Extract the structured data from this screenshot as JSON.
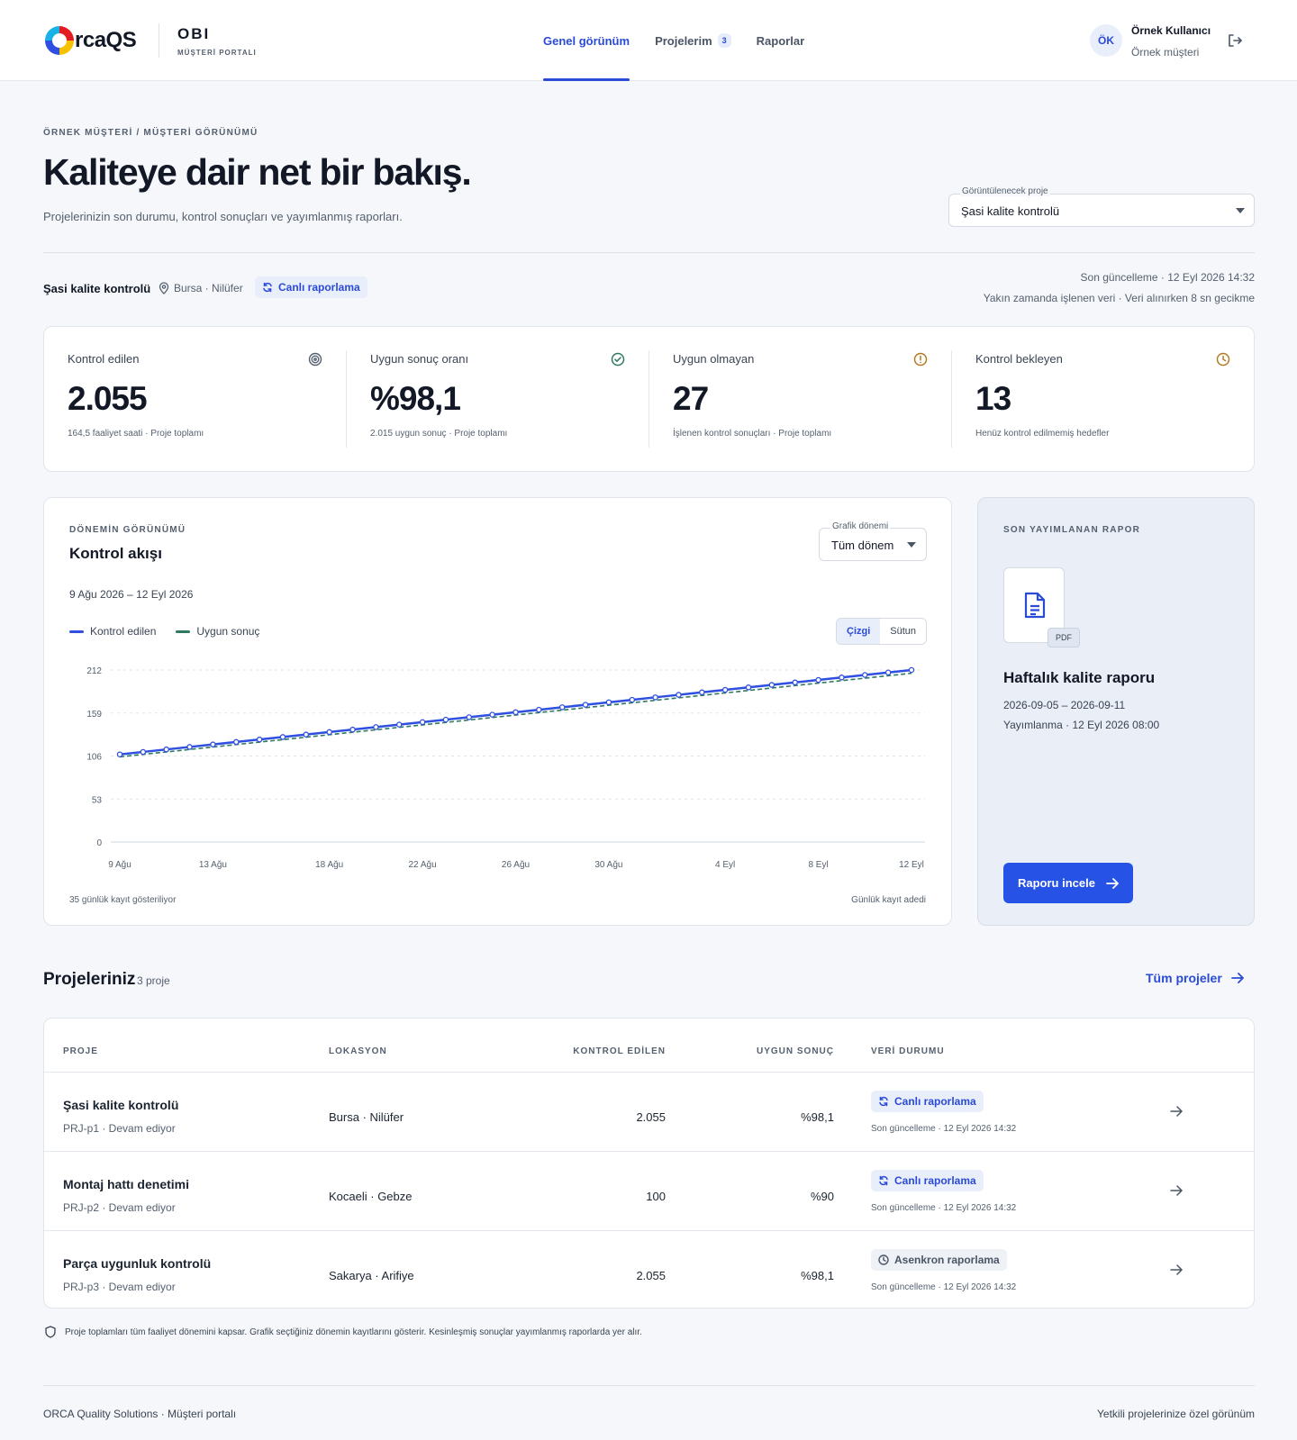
{
  "header": {
    "logo_text": "rcaQS",
    "brand_name": "OBI",
    "brand_sub": "MÜŞTERİ PORTALI",
    "nav": [
      {
        "label": "Genel görünüm",
        "active": true
      },
      {
        "label": "Projelerim",
        "badge": "3"
      },
      {
        "label": "Raporlar"
      }
    ],
    "user": {
      "initials": "ÖK",
      "name": "Örnek Kullanıcı",
      "role": "Örnek müşteri"
    }
  },
  "page": {
    "breadcrumb": "ÖRNEK MÜŞTERİ / MÜŞTERİ GÖRÜNÜMÜ",
    "title": "Kaliteye dair net bir bakış.",
    "subtitle": "Projelerinizin son durumu, kontrol sonuçları ve yayımlanmış raporları.",
    "project_select": {
      "label": "Görüntülenecek proje",
      "value": "Şasi kalite kontrolü"
    }
  },
  "project_bar": {
    "name": "Şasi kalite kontrolü",
    "location": "Bursa · Nilüfer",
    "status_chip": "Canlı raporlama",
    "last_update": "Son güncelleme · 12 Eyl 2026 14:32",
    "latency": "Yakın zamanda işlenen veri · Veri alınırken 8 sn gecikme"
  },
  "kpis": [
    {
      "label": "Kontrol edilen",
      "value": "2.055",
      "note": "164,5 faaliyet saati · Proje toplamı",
      "icon": "target-icon",
      "color": "#55606f"
    },
    {
      "label": "Uygun sonuç oranı",
      "value": "%98,1",
      "note": "2.015 uygun sonuç · Proje toplamı",
      "icon": "check-circle-icon",
      "color": "#2f7a5f"
    },
    {
      "label": "Uygun olmayan",
      "value": "27",
      "note": "İşlenen kontrol sonuçları · Proje toplamı",
      "icon": "alert-circle-icon",
      "color": "#b7791f"
    },
    {
      "label": "Kontrol bekleyen",
      "value": "13",
      "note": "Henüz kontrol edilmemiş hedefler",
      "icon": "clock-icon",
      "color": "#b7791f"
    }
  ],
  "chart_card": {
    "eyebrow": "DÖNEMİN GÖRÜNÜMÜ",
    "title": "Kontrol akışı",
    "range": "9 Ağu 2026 – 12 Eyl 2026",
    "period_label": "Grafik dönemi",
    "period_value": "Tüm dönem",
    "toggle": [
      "Çizgi",
      "Sütun"
    ],
    "footer_left": "35 günlük kayıt gösteriliyor",
    "footer_right": "Günlük kayıt adedi"
  },
  "chart_data": {
    "type": "line",
    "x_ticks": [
      "9 Ağu",
      "13 Ağu",
      "18 Ağu",
      "22 Ağu",
      "26 Ağu",
      "30 Ağu",
      "4 Eyl",
      "8 Eyl",
      "12 Eyl"
    ],
    "x_tick_index": [
      0,
      4,
      9,
      13,
      17,
      21,
      26,
      30,
      34
    ],
    "ylim": [
      0,
      212
    ],
    "y_ticks": [
      0,
      53,
      106,
      159,
      212
    ],
    "series": [
      {
        "name": "Kontrol edilen",
        "color": "#2f4fe0",
        "start": 108,
        "end": 212
      },
      {
        "name": "Uygun sonuç",
        "color": "#2f7a5f",
        "start": 105,
        "end": 208
      }
    ],
    "points": 35
  },
  "report": {
    "eyebrow": "SON YAYIMLANAN RAPOR",
    "file_type": "PDF",
    "title": "Haftalık kalite raporu",
    "dates": "2026-09-05 – 2026-09-11",
    "published": "Yayımlanma · 12 Eyl 2026 08:00",
    "button": "Raporu incele"
  },
  "projects": {
    "title": "Projeleriniz",
    "count": "3 proje",
    "all_link": "Tüm projeler",
    "columns": [
      "PROJE",
      "LOKASYON",
      "KONTROL EDİLEN",
      "UYGUN SONUÇ",
      "VERİ DURUMU"
    ],
    "rows": [
      {
        "name": "Şasi kalite kontrolü",
        "sub": "PRJ-p1 · Devam ediyor",
        "location": "Bursa · Nilüfer",
        "checked": "2.055",
        "ok": "%98,1",
        "status": "Canlı raporlama",
        "updated": "Son güncelleme · 12 Eyl 2026 14:32"
      },
      {
        "name": "Montaj hattı denetimi",
        "sub": "PRJ-p2 · Devam ediyor",
        "location": "Kocaeli · Gebze",
        "checked": "100",
        "ok": "%90",
        "status": "Canlı raporlama",
        "updated": "Son güncelleme · 12 Eyl 2026 14:32"
      },
      {
        "name": "Parça uygunluk kontrolü",
        "sub": "PRJ-p3 · Devam ediyor",
        "location": "Sakarya · Arifiye",
        "checked": "2.055",
        "ok": "%98,1",
        "status": "Asenkron raporlama",
        "updated": "Son güncelleme · 12 Eyl 2026 14:32"
      }
    ]
  },
  "note": "Proje toplamları tüm faaliyet dönemini kapsar. Grafik seçtiğiniz dönemin kayıtlarını gösterir. Kesinleşmiş sonuçlar yayımlanmış raporlarda yer alır.",
  "footer": {
    "left": "ORCA Quality Solutions · Müşteri portalı",
    "right": "Yetkili projelerinize özel görünüm"
  }
}
